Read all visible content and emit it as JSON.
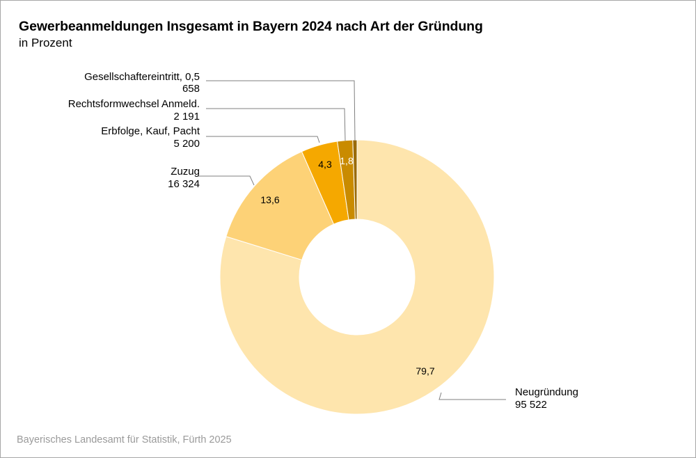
{
  "header": {
    "title": "Gewerbeanmeldungen Insgesamt in Bayern 2024 nach Art der Gründung",
    "subtitle": "in Prozent"
  },
  "footer": {
    "source": "Bayerisches Landesamt für Statistik, Fürth 2025"
  },
  "colors": {
    "Neugründung": "#fee5ad",
    "Zuzug": "#fdd277",
    "Erbfolge, Kauf, Pacht": "#f5a800",
    "Rechtsformwechsel Anmeld.": "#c98b00",
    "Gesellschaftereintritt": "#9a6a05"
  },
  "labels": {
    "gesellschafter": {
      "name": "Gesellschaftereintritt, 0,5",
      "value": "658"
    },
    "rechtsform": {
      "name": "Rechtsformwechsel Anmeld.",
      "value": "2 191"
    },
    "erbfolge": {
      "name": "Erbfolge, Kauf, Pacht",
      "value": "5 200"
    },
    "zuzug": {
      "name": "Zuzug",
      "value": "16 324"
    },
    "neugruendung": {
      "name": "Neugründung",
      "value": "95 522"
    }
  },
  "slice_labels": {
    "neugruendung": "79,7",
    "zuzug": "13,6",
    "erbfolge": "4,3",
    "rechtsform": "1,8"
  },
  "chart_data": {
    "type": "pie",
    "variant": "donut",
    "title": "Gewerbeanmeldungen Insgesamt in Bayern 2024 nach Art der Gründung",
    "subtitle": "in Prozent",
    "categories": [
      "Neugründung",
      "Zuzug",
      "Erbfolge, Kauf, Pacht",
      "Rechtsformwechsel Anmeld.",
      "Gesellschaftereintritt"
    ],
    "values_percent": [
      79.7,
      13.6,
      4.3,
      1.8,
      0.5
    ],
    "values_absolute": [
      95522,
      16324,
      5200,
      2191,
      658
    ],
    "legend": "none (direct labels with leader lines)",
    "source": "Bayerisches Landesamt für Statistik, Fürth 2025"
  }
}
